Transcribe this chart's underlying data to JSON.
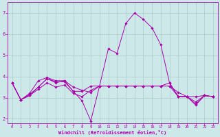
{
  "xlabel": "Windchill (Refroidissement éolien,°C)",
  "xlim": [
    -0.5,
    23.5
  ],
  "ylim": [
    1.8,
    7.5
  ],
  "yticks": [
    2,
    3,
    4,
    5,
    6,
    7
  ],
  "xticks": [
    0,
    1,
    2,
    3,
    4,
    5,
    6,
    7,
    8,
    9,
    10,
    11,
    12,
    13,
    14,
    15,
    16,
    17,
    18,
    19,
    20,
    21,
    22,
    23
  ],
  "background_color": "#cce8e8",
  "grid_color": "#aacccc",
  "line_color": "#aa00aa",
  "lines": [
    [
      3.7,
      2.9,
      3.1,
      3.5,
      3.9,
      3.7,
      3.8,
      3.3,
      2.85,
      1.9,
      3.55,
      5.3,
      5.1,
      6.5,
      7.0,
      6.7,
      6.3,
      5.5,
      3.7,
      3.05,
      3.05,
      2.7,
      3.1,
      3.05
    ],
    [
      3.7,
      2.9,
      3.15,
      3.5,
      3.9,
      3.75,
      3.75,
      3.3,
      3.3,
      3.55,
      3.55,
      3.55,
      3.55,
      3.55,
      3.55,
      3.55,
      3.55,
      3.55,
      3.7,
      3.05,
      3.05,
      2.65,
      3.1,
      3.05
    ],
    [
      3.7,
      2.9,
      3.2,
      3.8,
      3.95,
      3.8,
      3.8,
      3.5,
      3.35,
      3.25,
      3.55,
      3.55,
      3.55,
      3.55,
      3.55,
      3.55,
      3.55,
      3.55,
      3.55,
      3.25,
      3.05,
      3.05,
      3.1,
      3.05
    ],
    [
      3.7,
      2.9,
      3.1,
      3.4,
      3.7,
      3.5,
      3.6,
      3.2,
      3.05,
      3.35,
      3.55,
      3.55,
      3.55,
      3.55,
      3.55,
      3.55,
      3.55,
      3.55,
      3.55,
      3.05,
      3.05,
      2.8,
      3.1,
      3.05
    ]
  ]
}
